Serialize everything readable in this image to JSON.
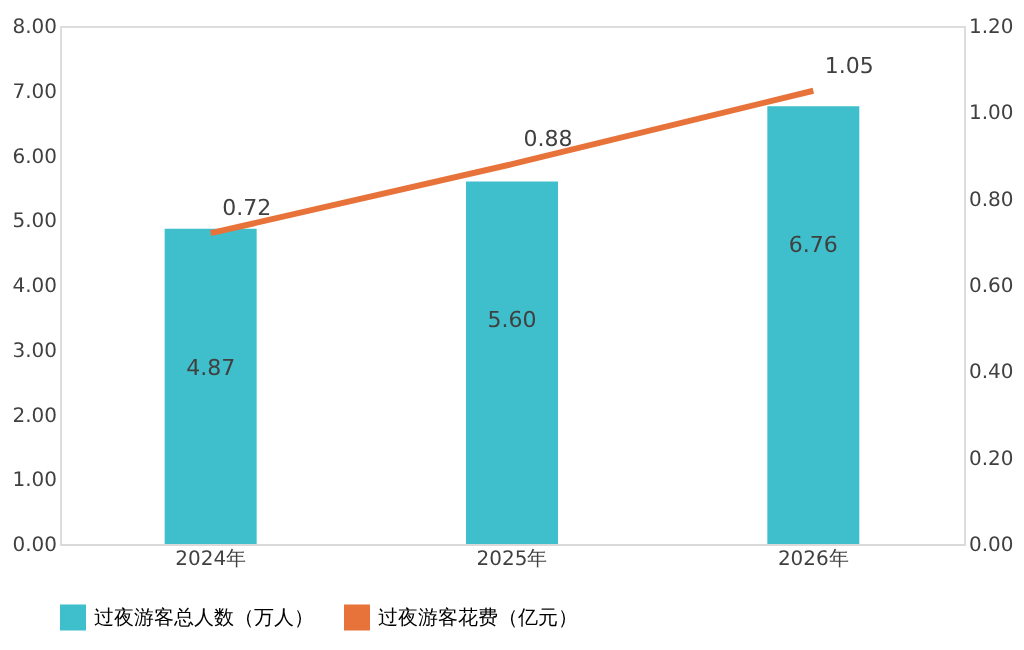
{
  "chart_data": {
    "type": "bar",
    "categories": [
      "2024年",
      "2025年",
      "2026年"
    ],
    "series": [
      {
        "name": "过夜游客总人数（万人）",
        "color": "#3fbfcc",
        "values": [
          4.87,
          5.6,
          6.76
        ],
        "value_labels": [
          "4.87",
          "5.60",
          "6.76"
        ]
      },
      {
        "name": "过夜游客花费（亿元）",
        "type": "line",
        "axis": "y2",
        "color": "#e8733a",
        "values": [
          0.72,
          0.88,
          1.05
        ],
        "value_labels": [
          "0.72",
          "0.88",
          "1.05"
        ]
      }
    ],
    "ylim": [
      0,
      8
    ],
    "yticks": [
      {
        "value": 0,
        "label": "0.00"
      },
      {
        "value": 1,
        "label": "1.00"
      },
      {
        "value": 2,
        "label": "2.00"
      },
      {
        "value": 3,
        "label": "3.00"
      },
      {
        "value": 4,
        "label": "4.00"
      },
      {
        "value": 5,
        "label": "5.00"
      },
      {
        "value": 6,
        "label": "6.00"
      },
      {
        "value": 7,
        "label": "7.00"
      },
      {
        "value": 8,
        "label": "8.00"
      }
    ],
    "y2lim": [
      0,
      1.2
    ],
    "y2ticks": [
      {
        "value": 0,
        "label": "0.00"
      },
      {
        "value": 0.2,
        "label": "0.20"
      },
      {
        "value": 0.4,
        "label": "0.40"
      },
      {
        "value": 0.6,
        "label": "0.60"
      },
      {
        "value": 0.8,
        "label": "0.80"
      },
      {
        "value": 1.0,
        "label": "1.00"
      },
      {
        "value": 1.2,
        "label": "1.20"
      }
    ],
    "legend": "bottom",
    "grid": false,
    "marker": "none",
    "line_style": "solid"
  }
}
